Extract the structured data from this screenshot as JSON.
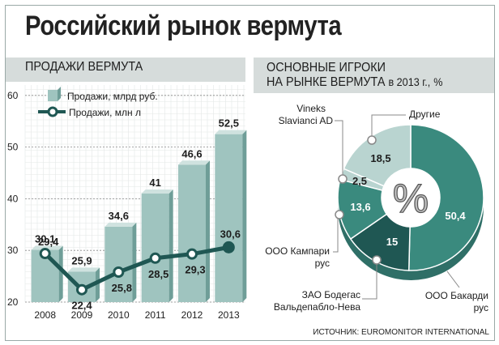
{
  "title": "Российский рынок вермута",
  "colors": {
    "bar_fill": "#9fc4bf",
    "bar_top": "#cfe2df",
    "bar_side": "#6f9e98",
    "line": "#1f5753",
    "marker_last": "#1f5753",
    "donut_main": "#3a8a7e",
    "donut_dark": "#1f5753",
    "donut_light": "#b9d4d0",
    "band": "#d6dcdb"
  },
  "left_panel": {
    "heading": "ПРОДАЖИ ВЕРМУТА"
  },
  "right_panel": {
    "heading_line1": "ОСНОВНЫЕ ИГРОКИ",
    "heading_line2": "НА РЫНКЕ ВЕРМУТА",
    "heading_year": "в 2013 г.,",
    "heading_unit": "%"
  },
  "source": "ИСТОЧНИК: EUROMONITOR INTERNATIONAL",
  "chart_data": [
    {
      "type": "bar",
      "categories": [
        "2008",
        "2009",
        "2010",
        "2011",
        "2012",
        "2013"
      ],
      "series": [
        {
          "name": "Продажи, млрд руб.",
          "kind": "bar",
          "values": [
            30.1,
            25.9,
            34.6,
            41,
            46.6,
            52.5
          ],
          "labels": [
            "30,1",
            "25,9",
            "34,6",
            "41",
            "46,6",
            "52,5"
          ]
        },
        {
          "name": "Продажи, млн л",
          "kind": "line",
          "values": [
            29.4,
            22.4,
            25.8,
            28.5,
            29.3,
            30.6
          ],
          "labels": [
            "29,4",
            "22,4",
            "25,8",
            "28,5",
            "29,3",
            "30,6"
          ]
        }
      ],
      "yticks": [
        20,
        30,
        40,
        50,
        60
      ],
      "ylim": [
        20,
        62
      ],
      "legend": [
        "Продажи, млрд руб.",
        "Продажи, млн л"
      ],
      "legend_position": "top-left"
    },
    {
      "type": "pie",
      "title": "ОСНОВНЫЕ ИГРОКИ НА РЫНКЕ ВЕРМУТА в 2013 г., %",
      "center_label": "%",
      "slices": [
        {
          "label": "ООО Бакарди рус",
          "value": 50.4,
          "value_label": "50,4",
          "tone": "main"
        },
        {
          "label": "ЗАО Бодегас Вальдепабло-Нева",
          "value": 15,
          "value_label": "15",
          "tone": "dark"
        },
        {
          "label": "ООО Кампари рус",
          "value": 13.6,
          "value_label": "13,6",
          "tone": "main"
        },
        {
          "label": "Vineks Slavianci AD",
          "value": 2.5,
          "value_label": "2,5",
          "tone": "light"
        },
        {
          "label": "Другие",
          "value": 18.5,
          "value_label": "18,5",
          "tone": "light"
        }
      ]
    }
  ]
}
